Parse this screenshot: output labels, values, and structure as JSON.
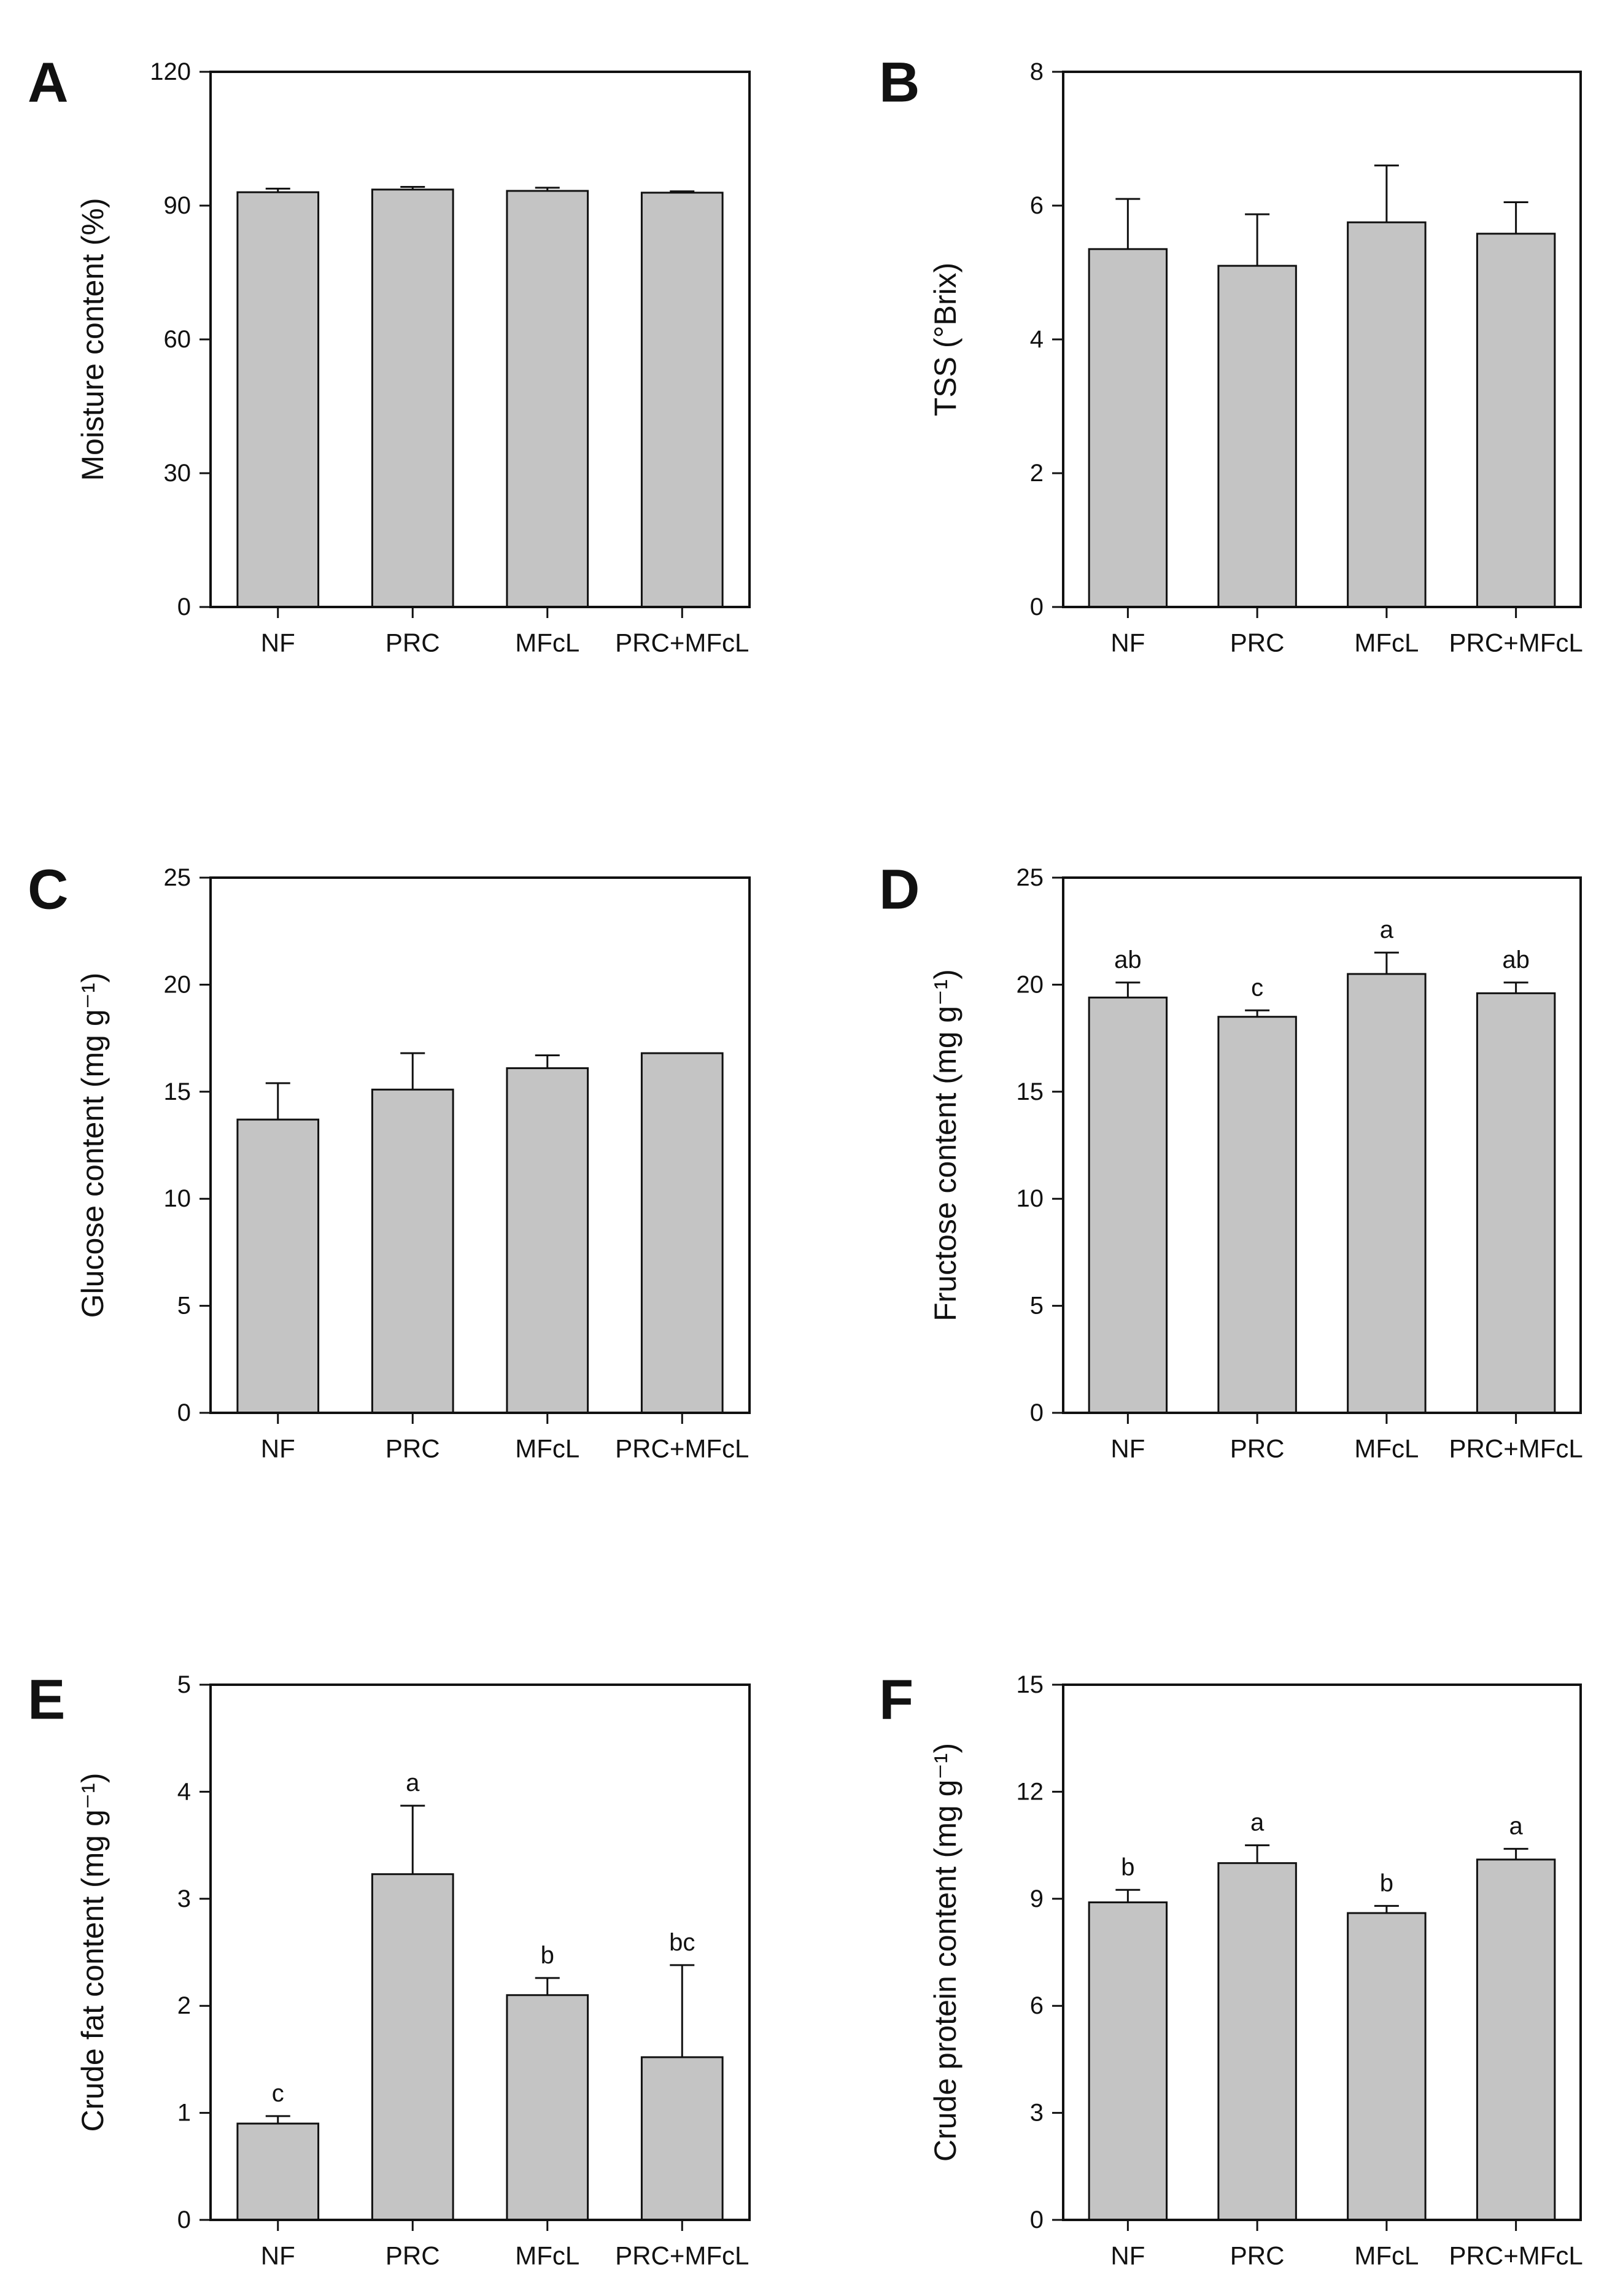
{
  "figure": {
    "bar_color": "#c4c4c4",
    "axis_color": "#111111"
  },
  "chart_data": [
    {
      "panel": "A",
      "type": "bar",
      "categories": [
        "NF",
        "PRC",
        "MFcL",
        "PRC+MFcL"
      ],
      "values": [
        93.0,
        93.6,
        93.3,
        92.9
      ],
      "errors": [
        0.8,
        0.6,
        0.7,
        0.3
      ],
      "letters": [
        "",
        "",
        "",
        ""
      ],
      "ylabel": "Moisture content (%)",
      "ylim": [
        0,
        120
      ],
      "yticks": [
        "0",
        "30",
        "60",
        "90",
        "120"
      ]
    },
    {
      "panel": "B",
      "type": "bar",
      "categories": [
        "NF",
        "PRC",
        "MFcL",
        "PRC+MFcL"
      ],
      "values": [
        5.35,
        5.1,
        5.75,
        5.58
      ],
      "errors": [
        0.75,
        0.77,
        0.85,
        0.47
      ],
      "letters": [
        "",
        "",
        "",
        ""
      ],
      "ylabel": "TSS (°Brix)",
      "ylim": [
        0,
        8
      ],
      "yticks": [
        "0",
        "2",
        "4",
        "6",
        "8"
      ]
    },
    {
      "panel": "C",
      "type": "bar",
      "categories": [
        "NF",
        "PRC",
        "MFcL",
        "PRC+MFcL"
      ],
      "values": [
        13.7,
        15.1,
        16.1,
        16.8
      ],
      "errors": [
        1.7,
        1.7,
        0.6,
        0.0
      ],
      "letters": [
        "",
        "",
        "",
        ""
      ],
      "ylabel": "Glucose content (mg g⁻¹)",
      "ylim": [
        0,
        25
      ],
      "yticks": [
        "0",
        "5",
        "10",
        "15",
        "20",
        "25"
      ]
    },
    {
      "panel": "D",
      "type": "bar",
      "categories": [
        "NF",
        "PRC",
        "MFcL",
        "PRC+MFcL"
      ],
      "values": [
        19.4,
        18.5,
        20.5,
        19.6
      ],
      "errors": [
        0.7,
        0.3,
        1.0,
        0.5
      ],
      "letters": [
        "ab",
        "c",
        "a",
        "ab"
      ],
      "ylabel": "Fructose content (mg g⁻¹)",
      "ylim": [
        0,
        25
      ],
      "yticks": [
        "0",
        "5",
        "10",
        "15",
        "20",
        "25"
      ]
    },
    {
      "panel": "E",
      "type": "bar",
      "categories": [
        "NF",
        "PRC",
        "MFcL",
        "PRC+MFcL"
      ],
      "values": [
        0.9,
        3.23,
        2.1,
        1.52
      ],
      "errors": [
        0.07,
        0.64,
        0.16,
        0.86
      ],
      "letters": [
        "c",
        "a",
        "b",
        "bc"
      ],
      "ylabel": "Crude fat content (mg g⁻¹)",
      "ylim": [
        0,
        5
      ],
      "yticks": [
        "0",
        "1",
        "2",
        "3",
        "4",
        "5"
      ]
    },
    {
      "panel": "F",
      "type": "bar",
      "categories": [
        "NF",
        "PRC",
        "MFcL",
        "PRC+MFcL"
      ],
      "values": [
        8.9,
        10.0,
        8.6,
        10.1
      ],
      "errors": [
        0.35,
        0.5,
        0.2,
        0.3
      ],
      "letters": [
        "b",
        "a",
        "b",
        "a"
      ],
      "ylabel": "Crude protein content (mg g⁻¹)",
      "ylim": [
        0,
        15
      ],
      "yticks": [
        "0",
        "3",
        "6",
        "9",
        "12",
        "15"
      ]
    }
  ]
}
